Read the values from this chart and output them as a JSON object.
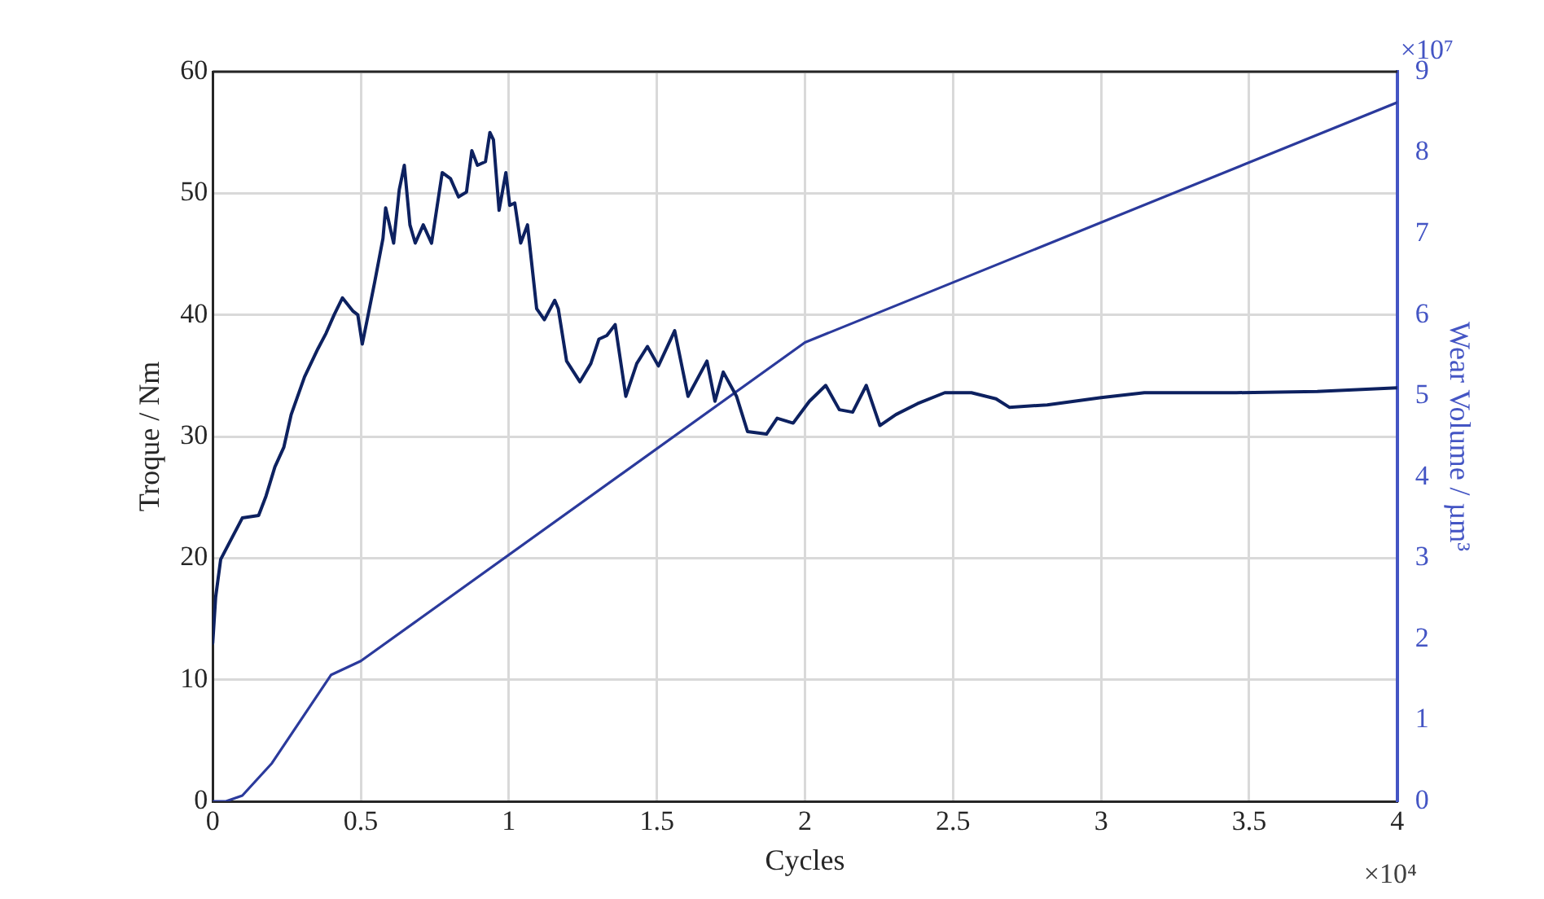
{
  "chart_data": {
    "type": "line",
    "xlabel": "Cycles",
    "ylabel": "Troque / Nm",
    "y2label": "Wear Volume / µm³",
    "xlim": [
      0,
      4
    ],
    "xticks": [
      0,
      0.5,
      1,
      1.5,
      2,
      2.5,
      3,
      3.5,
      4
    ],
    "ylim": [
      0,
      60
    ],
    "yticks": [
      0,
      10,
      20,
      30,
      40,
      50,
      60
    ],
    "y2lim": [
      0,
      9
    ],
    "y2ticks": [
      0,
      1,
      2,
      3,
      4,
      5,
      6,
      7,
      8,
      9
    ],
    "grid": true,
    "legend": false,
    "marker": "none",
    "line_style": "solid",
    "annotations": [
      "×10⁴",
      "×10⁷"
    ],
    "series": [
      {
        "color": "#0d2160",
        "x": [
          0,
          0.01,
          0.027,
          0.055,
          0.1,
          0.155,
          0.18,
          0.21,
          0.24,
          0.265,
          0.31,
          0.355,
          0.383,
          0.41,
          0.438,
          0.474,
          0.49,
          0.505,
          0.52,
          0.547,
          0.575,
          0.584,
          0.611,
          0.63,
          0.647,
          0.666,
          0.684,
          0.711,
          0.739,
          0.757,
          0.775,
          0.803,
          0.83,
          0.857,
          0.875,
          0.894,
          0.921,
          0.936,
          0.948,
          0.967,
          0.99,
          1.003,
          1.02,
          1.04,
          1.063,
          1.094,
          1.12,
          1.155,
          1.167,
          1.195,
          1.24,
          1.277,
          1.304,
          1.331,
          1.359,
          1.395,
          1.432,
          1.468,
          1.505,
          1.56,
          1.605,
          1.669,
          1.696,
          1.724,
          1.769,
          1.806,
          1.87,
          1.906,
          1.96,
          2.015,
          2.07,
          2.116,
          2.161,
          2.207,
          2.253,
          2.307,
          2.38,
          2.472,
          2.562,
          2.645,
          2.69,
          2.818,
          3.0,
          3.146,
          3.457,
          3.73,
          4.0
        ],
        "values": [
          13.0,
          16.8,
          19.9,
          21.2,
          23.3,
          23.5,
          25.1,
          27.5,
          29.1,
          31.8,
          34.9,
          37.2,
          38.5,
          40.0,
          41.4,
          40.3,
          40.0,
          37.6,
          39.4,
          42.7,
          46.3,
          48.8,
          45.9,
          50.3,
          52.3,
          47.4,
          45.9,
          47.4,
          45.9,
          48.8,
          51.7,
          51.2,
          49.7,
          50.1,
          53.5,
          52.3,
          52.6,
          55.0,
          54.4,
          48.6,
          51.7,
          49.0,
          49.2,
          45.9,
          47.4,
          40.5,
          39.6,
          41.2,
          40.5,
          36.2,
          34.5,
          36.0,
          38.0,
          38.3,
          39.2,
          33.3,
          36.0,
          37.4,
          35.8,
          38.7,
          33.3,
          36.2,
          32.9,
          35.3,
          33.3,
          30.4,
          30.2,
          31.5,
          31.1,
          32.9,
          34.2,
          32.2,
          32.0,
          34.2,
          30.9,
          31.8,
          32.7,
          33.6,
          33.6,
          33.1,
          32.4,
          32.6,
          33.2,
          33.6,
          33.6,
          33.7,
          34.0
        ]
      },
      {
        "color": "#2b3a9c",
        "axis": "y2",
        "x": [
          0,
          0.045,
          0.1,
          0.2,
          0.4,
          0.5,
          2.0,
          4.0
        ],
        "values": [
          0,
          0,
          0.07,
          0.47,
          1.56,
          1.73,
          5.66,
          8.62
        ]
      }
    ]
  }
}
